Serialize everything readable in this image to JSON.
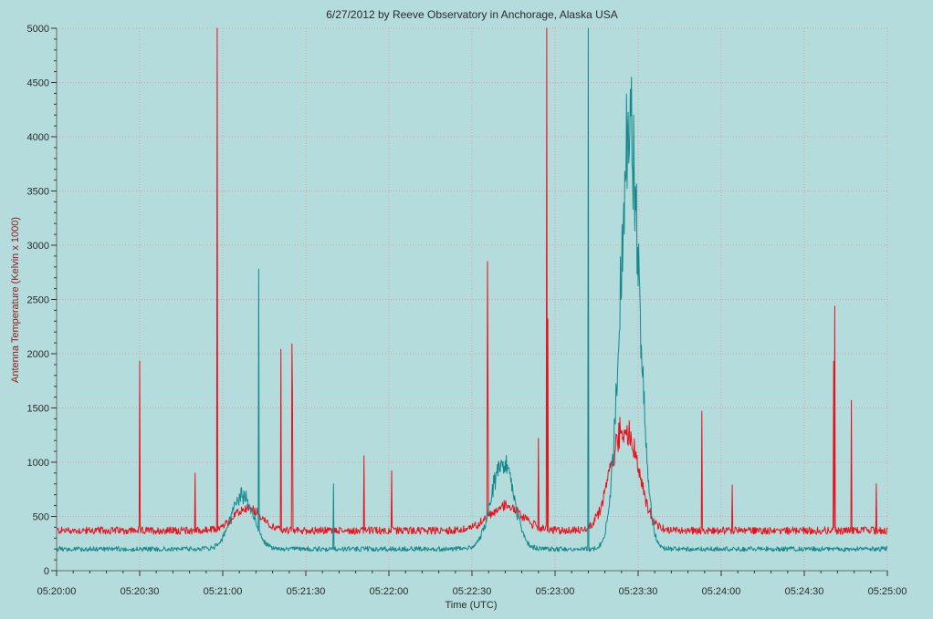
{
  "chart_data": {
    "type": "line",
    "title": "6/27/2012  by  Reeve Observatory  in  Anchorage, Alaska  USA",
    "xlabel": "Time (UTC)",
    "ylabel": "Antenna Temperature (Kelvin x 1000)",
    "x_range_seconds_after_0520": [
      0,
      300
    ],
    "ylim": [
      0,
      5000
    ],
    "grid": true,
    "colors": {
      "background": "#b4dcdc",
      "grid": "#d9a3a3",
      "axis": "#6b6b6b"
    },
    "x_ticks": [
      "05:20:00",
      "05:20:30",
      "05:21:00",
      "05:21:30",
      "05:22:00",
      "05:22:30",
      "05:23:00",
      "05:23:30",
      "05:24:00",
      "05:24:30",
      "05:25:00"
    ],
    "y_ticks": [
      "0",
      "500",
      "1000",
      "1500",
      "2000",
      "2500",
      "3000",
      "3500",
      "4000",
      "4500",
      "5000"
    ],
    "series": [
      {
        "color": "#e8121e",
        "baseline": 370,
        "noise": 35,
        "bumps": [
          {
            "center_s": 69,
            "peak": 200,
            "width_s": 5
          },
          {
            "center_s": 162,
            "peak": 230,
            "width_s": 6
          },
          {
            "center_s": 205,
            "peak": 950,
            "width_s": 5
          }
        ],
        "spikes": [
          {
            "x_s": 30,
            "value": 1930
          },
          {
            "x_s": 50,
            "value": 900
          },
          {
            "x_s": 58,
            "value": 5000
          },
          {
            "x_s": 81,
            "value": 2040
          },
          {
            "x_s": 85,
            "value": 2090
          },
          {
            "x_s": 85.2,
            "value": 1650
          },
          {
            "x_s": 111,
            "value": 1060
          },
          {
            "x_s": 121,
            "value": 920
          },
          {
            "x_s": 155.5,
            "value": 2850
          },
          {
            "x_s": 155.8,
            "value": 1650
          },
          {
            "x_s": 174,
            "value": 1220
          },
          {
            "x_s": 177,
            "value": 5000
          },
          {
            "x_s": 177.3,
            "value": 2320
          },
          {
            "x_s": 233,
            "value": 1470
          },
          {
            "x_s": 244,
            "value": 790
          },
          {
            "x_s": 280.5,
            "value": 1930
          },
          {
            "x_s": 281,
            "value": 2440
          },
          {
            "x_s": 287,
            "value": 1570
          },
          {
            "x_s": 296,
            "value": 800
          }
        ]
      },
      {
        "color": "#16888c",
        "baseline": 200,
        "noise": 22,
        "bumps": [
          {
            "center_s": 67,
            "peak": 500,
            "width_s": 4
          },
          {
            "center_s": 161,
            "peak": 820,
            "width_s": 4
          },
          {
            "center_s": 207,
            "peak": 3900,
            "width_s": 3.5
          }
        ],
        "spikes": [
          {
            "x_s": 73,
            "value": 2780
          },
          {
            "x_s": 100,
            "value": 800
          },
          {
            "x_s": 192,
            "value": 5000
          },
          {
            "x_s": 207.5,
            "value": 4330
          }
        ]
      }
    ]
  }
}
